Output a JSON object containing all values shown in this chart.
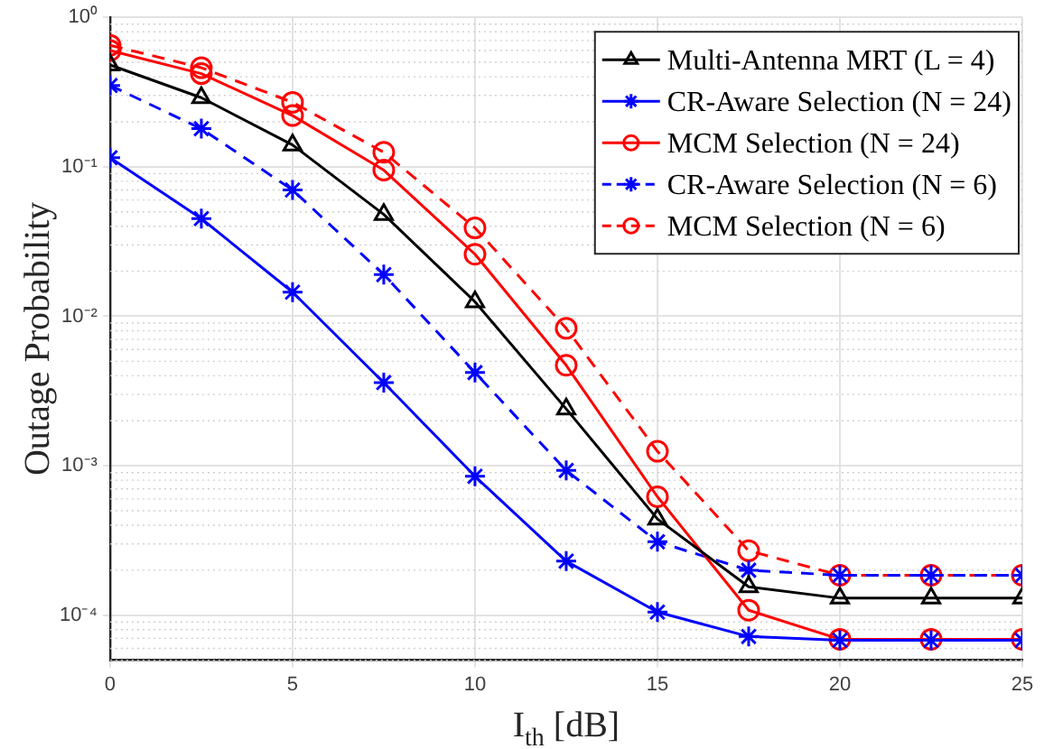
{
  "chart_data": {
    "type": "line",
    "xlabel": "I$_{th}$ [dB]",
    "ylabel": "Outage Probability",
    "x": [
      0,
      2.5,
      5,
      7.5,
      10,
      12.5,
      15,
      17.5,
      20,
      22.5,
      25
    ],
    "xlim": [
      0,
      25
    ],
    "xticks": [
      0,
      5,
      10,
      15,
      20,
      25
    ],
    "ylim": [
      5e-05,
      1
    ],
    "yticks": [
      {
        "value": 0.0001,
        "label": "10⁻⁴"
      },
      {
        "value": 0.001,
        "label": "10⁻³"
      },
      {
        "value": 0.01,
        "label": "10⁻²"
      },
      {
        "value": 0.1,
        "label": "10⁻¹"
      },
      {
        "value": 1,
        "label": "10⁰"
      }
    ],
    "log": "y",
    "grid": true,
    "legend": "top right",
    "series": [
      {
        "name": "Multi-Antenna MRT (L = 4)",
        "color": "#000000",
        "marker": "triangle",
        "line_style": "solid",
        "values": [
          0.48,
          0.29,
          0.14,
          0.048,
          0.0125,
          0.0024,
          0.00044,
          0.000155,
          0.00013,
          0.00013,
          0.00013
        ]
      },
      {
        "name": "CR-Aware Selection (N = 24)",
        "color": "#0000ff",
        "marker": "cross",
        "line_style": "solid",
        "values": [
          0.115,
          0.045,
          0.0145,
          0.0036,
          0.00085,
          0.00023,
          0.000105,
          7.2e-05,
          6.8e-05,
          6.8e-05,
          6.8e-05
        ]
      },
      {
        "name": "MCM Selection (N = 24)",
        "color": "#ff0000",
        "marker": "circle",
        "line_style": "solid",
        "values": [
          0.6,
          0.42,
          0.22,
          0.095,
          0.026,
          0.0047,
          0.00062,
          0.000108,
          6.9e-05,
          6.9e-05,
          6.9e-05
        ]
      },
      {
        "name": "CR-Aware Selection (N = 6)",
        "color": "#0000ff",
        "marker": "cross",
        "line_style": "dashed",
        "values": [
          0.35,
          0.18,
          0.07,
          0.019,
          0.0042,
          0.00093,
          0.00031,
          0.0002,
          0.000185,
          0.000185,
          0.000185
        ]
      },
      {
        "name": "MCM Selection (N = 6)",
        "color": "#ff0000",
        "marker": "circle",
        "line_style": "dashed",
        "values": [
          0.65,
          0.46,
          0.27,
          0.125,
          0.039,
          0.0083,
          0.00125,
          0.00027,
          0.000185,
          0.000185,
          0.000185
        ]
      }
    ]
  }
}
